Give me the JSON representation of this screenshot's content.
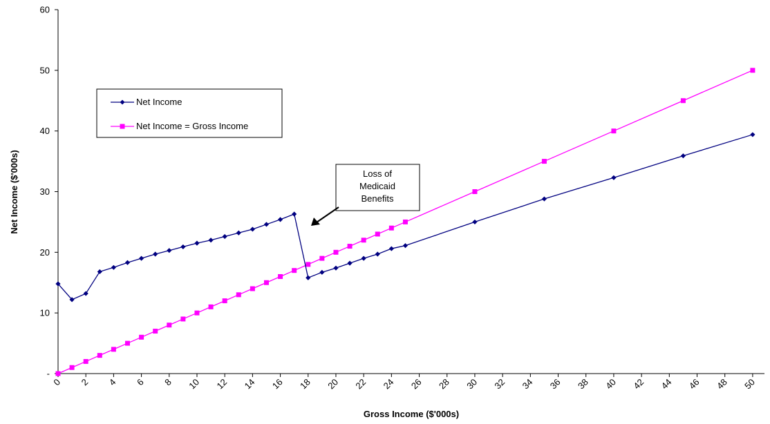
{
  "chart_data": {
    "type": "line",
    "xlabel": "Gross Income ($'000s)",
    "ylabel": "Net Income ($'000s)",
    "xlim": [
      0,
      51
    ],
    "ylim": [
      0,
      60
    ],
    "x_ticks": [
      "0",
      "2",
      "4",
      "6",
      "8",
      "10",
      "12",
      "14",
      "16",
      "18",
      "20",
      "22",
      "24",
      "26",
      "28",
      "30",
      "32",
      "34",
      "36",
      "38",
      "40",
      "42",
      "44",
      "46",
      "48",
      "50"
    ],
    "y_ticks": [
      "-",
      "10",
      "20",
      "30",
      "40",
      "50",
      "60"
    ],
    "grid": false,
    "legend_position": "upper-left",
    "series": [
      {
        "name": "Net Income",
        "color": "#000080",
        "marker": "diamond",
        "x": [
          0,
          1,
          2,
          3,
          4,
          5,
          6,
          7,
          8,
          9,
          10,
          11,
          12,
          13,
          14,
          15,
          16,
          17,
          18,
          19,
          20,
          21,
          22,
          23,
          24,
          25,
          30,
          35,
          40,
          45,
          50
        ],
        "y": [
          14.8,
          12.2,
          13.2,
          16.8,
          17.5,
          18.3,
          19.0,
          19.7,
          20.3,
          20.9,
          21.5,
          22.0,
          22.6,
          23.2,
          23.8,
          24.6,
          25.4,
          26.3,
          15.8,
          16.7,
          17.4,
          18.2,
          19.0,
          19.7,
          20.6,
          21.1,
          25.0,
          28.8,
          32.3,
          35.9,
          39.4
        ]
      },
      {
        "name": "Net Income = Gross Income",
        "color": "#ff00ff",
        "marker": "square",
        "x": [
          0,
          1,
          2,
          3,
          4,
          5,
          6,
          7,
          8,
          9,
          10,
          11,
          12,
          13,
          14,
          15,
          16,
          17,
          18,
          19,
          20,
          21,
          22,
          23,
          24,
          25,
          30,
          35,
          40,
          45,
          50
        ],
        "y": [
          0,
          1,
          2,
          3,
          4,
          5,
          6,
          7,
          8,
          9,
          10,
          11,
          12,
          13,
          14,
          15,
          16,
          17,
          18,
          19,
          20,
          21,
          22,
          23,
          24,
          25,
          30,
          35,
          40,
          45,
          50
        ]
      }
    ],
    "annotations": [
      {
        "lines": [
          "Loss of",
          "Medicaid",
          "Benefits"
        ]
      }
    ]
  }
}
